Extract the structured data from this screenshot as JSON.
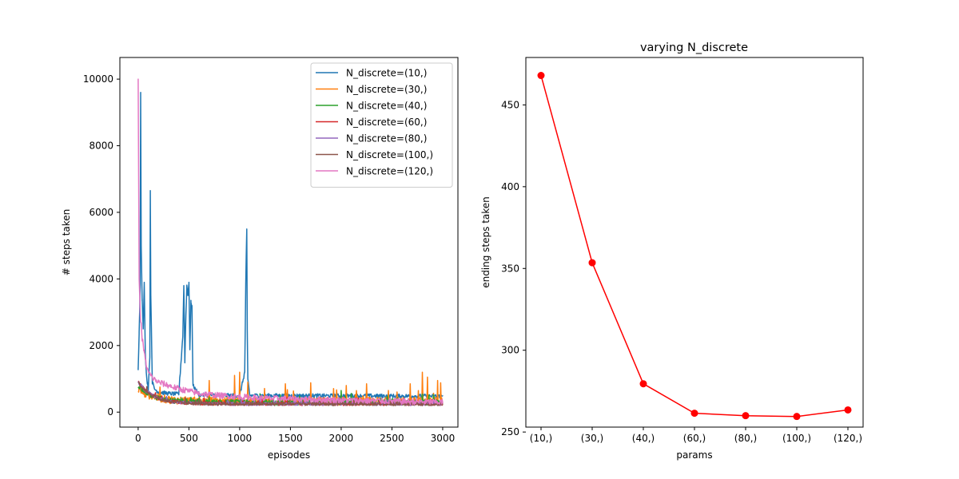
{
  "chart_data": [
    {
      "type": "line",
      "title": "",
      "xlabel": "episodes",
      "ylabel": "# steps taken",
      "xlim": [
        -180,
        3150
      ],
      "ylim": [
        -450,
        10650
      ],
      "xticks": [
        0,
        500,
        1000,
        1500,
        2000,
        2500,
        3000
      ],
      "yticks": [
        0,
        2000,
        4000,
        6000,
        8000,
        10000
      ],
      "grid": false,
      "legend_position": "top-right",
      "series": [
        {
          "name": "N_discrete=(10,)",
          "color": "#1f77b4",
          "baseline": 480,
          "early_peak": 1300,
          "noise": 60,
          "start": [
            [
              0,
              1300
            ],
            [
              10,
              2400
            ],
            [
              20,
              3800
            ],
            [
              25,
              9600
            ],
            [
              30,
              5000
            ],
            [
              40,
              3400
            ],
            [
              50,
              2500
            ],
            [
              60,
              3900
            ],
            [
              70,
              1800
            ],
            [
              80,
              1200
            ],
            [
              90,
              900
            ],
            [
              100,
              700
            ],
            [
              115,
              1700
            ],
            [
              120,
              6600
            ],
            [
              125,
              3500
            ],
            [
              130,
              2600
            ],
            [
              140,
              900
            ],
            [
              160,
              700
            ],
            [
              200,
              600
            ],
            [
              300,
              560
            ],
            [
              400,
              540
            ],
            [
              440,
              2300
            ],
            [
              450,
              3800
            ],
            [
              460,
              1500
            ],
            [
              470,
              2900
            ],
            [
              480,
              3800
            ],
            [
              490,
              3500
            ],
            [
              500,
              3900
            ],
            [
              510,
              1900
            ],
            [
              520,
              3300
            ],
            [
              530,
              3200
            ],
            [
              540,
              800
            ],
            [
              600,
              520
            ],
            [
              800,
              500
            ],
            [
              1000,
              500
            ],
            [
              1050,
              1200
            ],
            [
              1060,
              3850
            ],
            [
              1070,
              5450
            ],
            [
              1075,
              2500
            ],
            [
              1080,
              1000
            ],
            [
              1100,
              500
            ],
            [
              3000,
              480
            ]
          ]
        },
        {
          "name": "N_discrete=(30,)",
          "color": "#ff7f0e",
          "baseline": 330,
          "early_peak": 700,
          "noise": 120,
          "spikes": [
            [
              700,
              950
            ],
            [
              950,
              1100
            ],
            [
              1000,
              1200
            ],
            [
              1080,
              900
            ],
            [
              1450,
              850
            ],
            [
              1700,
              880
            ],
            [
              2050,
              800
            ],
            [
              2250,
              850
            ],
            [
              2680,
              850
            ],
            [
              2800,
              1200
            ],
            [
              2850,
              1050
            ],
            [
              2950,
              950
            ],
            [
              2980,
              880
            ]
          ]
        },
        {
          "name": "N_discrete=(40,)",
          "color": "#2ca02c",
          "baseline": 290,
          "early_peak": 800,
          "noise": 80,
          "spikes": [
            [
              1200,
              550
            ],
            [
              1400,
              520
            ],
            [
              2000,
              650
            ],
            [
              2100,
              560
            ],
            [
              2800,
              540
            ]
          ]
        },
        {
          "name": "N_discrete=(60,)",
          "color": "#d62728",
          "baseline": 250,
          "early_peak": 900,
          "noise": 50
        },
        {
          "name": "N_discrete=(80,)",
          "color": "#9467bd",
          "baseline": 250,
          "early_peak": 900,
          "noise": 50
        },
        {
          "name": "N_discrete=(100,)",
          "color": "#8c564b",
          "baseline": 245,
          "early_peak": 900,
          "noise": 50
        },
        {
          "name": "N_discrete=(120,)",
          "color": "#e377c2",
          "baseline": 320,
          "early_peak": 1500,
          "noise": 90,
          "start": [
            [
              0,
              10000
            ],
            [
              5,
              7000
            ],
            [
              10,
              4000
            ],
            [
              20,
              3000
            ],
            [
              40,
              2200
            ],
            [
              60,
              1800
            ],
            [
              80,
              1400
            ],
            [
              100,
              1200
            ],
            [
              150,
              1000
            ],
            [
              200,
              900
            ],
            [
              300,
              800
            ],
            [
              400,
              700
            ],
            [
              600,
              560
            ],
            [
              800,
              500
            ],
            [
              1200,
              420
            ],
            [
              2000,
              360
            ],
            [
              3000,
              300
            ]
          ]
        }
      ]
    },
    {
      "type": "line",
      "title": "varying N_discrete",
      "xlabel": "params",
      "ylabel": "ending steps taken",
      "categories": [
        "(10,)",
        "(30,)",
        "(40,)",
        "(60,)",
        "(80,)",
        "(100,)",
        "(120,)"
      ],
      "values": [
        468,
        353.5,
        279.5,
        261.5,
        260,
        259.5,
        263.5
      ],
      "ylim": [
        253,
        479
      ],
      "yticks": [
        250,
        300,
        350,
        400,
        450
      ],
      "color": "#ff0000",
      "grid": false
    }
  ]
}
